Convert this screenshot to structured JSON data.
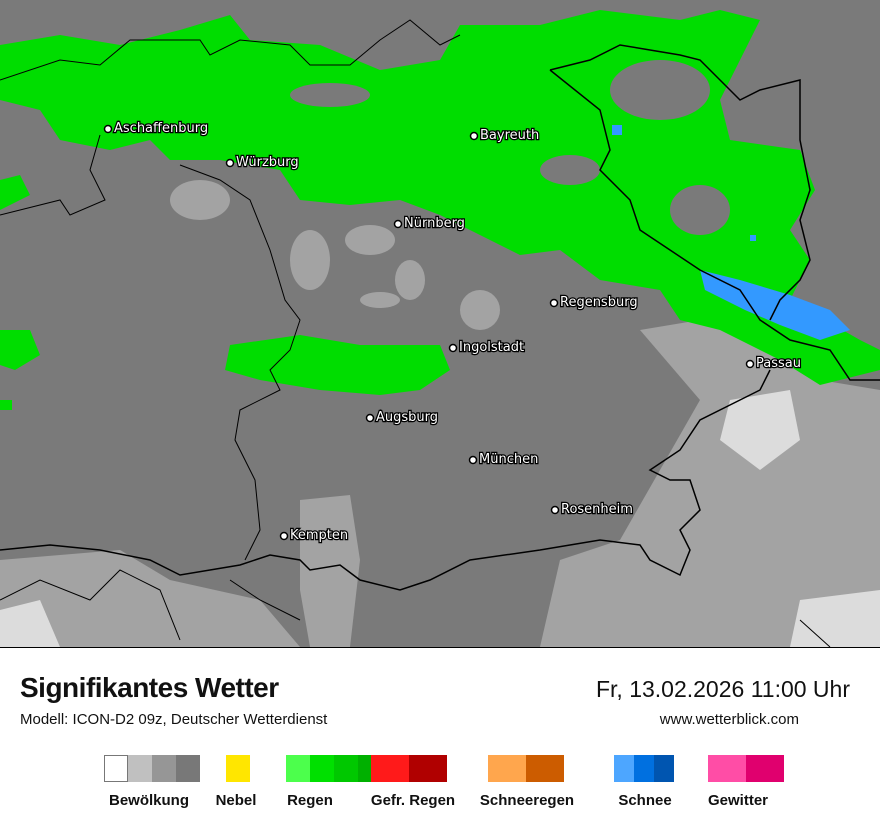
{
  "header": {
    "title": "Signifikantes Wetter",
    "model": "Modell: ICON-D2 09z, Deutscher Wetterdienst",
    "datetime": "Fr, 13.02.2026 11:00 Uhr",
    "site": "www.wetterblick.com"
  },
  "map": {
    "cities": [
      "Aschaffenburg",
      "Würzburg",
      "Bayreuth",
      "Nürnberg",
      "Regensburg",
      "Ingolstadt",
      "Passau",
      "Augsburg",
      "München",
      "Rosenheim",
      "Kempten"
    ],
    "colors": {
      "background": "#7a7a7a",
      "cloud_light": "#a0a0a0",
      "rain": "#00dd00",
      "snow": "#3399ff",
      "border": "#000000"
    }
  },
  "legend": [
    {
      "label": "Bewölkung",
      "colors": [
        "#ffffff",
        "#c0c0c0",
        "#969696",
        "#787878"
      ]
    },
    {
      "label": "Nebel",
      "colors": [
        "#ffe600"
      ]
    },
    {
      "label": "Regen",
      "colors": [
        "#4cff4c",
        "#00e000",
        "#00c800",
        "#00b000"
      ]
    },
    {
      "label": "Gefr. Regen",
      "colors": [
        "#ff1a1a",
        "#b00000"
      ]
    },
    {
      "label": "Schneeregen",
      "colors": [
        "#ffa64d",
        "#cc5c00"
      ]
    },
    {
      "label": "Schnee",
      "colors": [
        "#4da6ff",
        "#0070e0",
        "#0055b0"
      ]
    },
    {
      "label": "Gewitter",
      "colors": [
        "#ff4da6",
        "#e0006e"
      ]
    }
  ]
}
